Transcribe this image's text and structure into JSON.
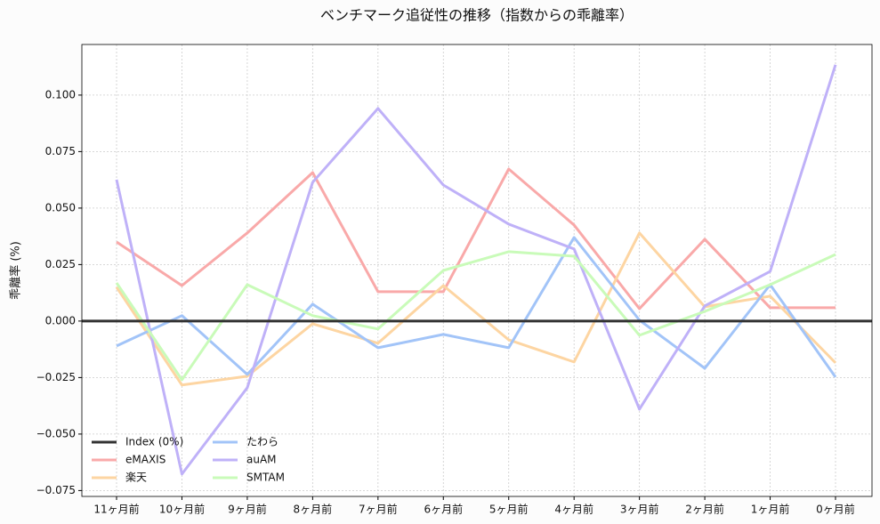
{
  "chart_data": {
    "type": "line",
    "title": "ベンチマーク追従性の推移（指数からの乖離率）",
    "y_label": "乖離率 (%)",
    "categories": [
      "11ヶ月前",
      "10ヶ月前",
      "9ヶ月前",
      "8ヶ月前",
      "7ヶ月前",
      "6ヶ月前",
      "5ヶ月前",
      "4ヶ月前",
      "3ヶ月前",
      "2ヶ月前",
      "1ヶ月前",
      "0ヶ月前"
    ],
    "reference_line": {
      "name": "Index (0%)",
      "value": 0,
      "color": "#333333"
    },
    "series": [
      {
        "name": "eMAXIS",
        "color": "#f9a9a9",
        "values": [
          0.035,
          0.0157,
          0.039,
          0.0657,
          0.013,
          0.013,
          0.0673,
          0.0425,
          0.0055,
          0.0362,
          0.0059,
          0.0059
        ]
      },
      {
        "name": "楽天",
        "color": "#fdd5a2",
        "values": [
          0.015,
          -0.0283,
          -0.0244,
          -0.0012,
          -0.0098,
          0.0157,
          -0.0083,
          -0.0181,
          0.039,
          0.0063,
          0.011,
          -0.0185
        ]
      },
      {
        "name": "たわら",
        "color": "#a2c4f8",
        "values": [
          -0.011,
          0.0024,
          -0.0236,
          0.0075,
          -0.0118,
          -0.0059,
          -0.0118,
          0.037,
          0.0004,
          -0.0209,
          0.0161,
          -0.0248
        ]
      },
      {
        "name": "auAM",
        "color": "#bfb1f8",
        "values": [
          0.0626,
          -0.0677,
          -0.0295,
          0.0614,
          0.0941,
          0.0602,
          0.0429,
          0.0319,
          -0.039,
          0.0067,
          0.022,
          0.1134
        ]
      },
      {
        "name": "SMTAM",
        "color": "#c9fbb9",
        "values": [
          0.0169,
          -0.026,
          0.0161,
          0.0024,
          -0.0035,
          0.0224,
          0.0307,
          0.0287,
          -0.0063,
          0.0043,
          0.0161,
          0.0295
        ]
      }
    ],
    "ylim": [
      -0.0776,
      0.1224
    ],
    "yticks": [
      {
        "value": -0.075,
        "label": "−0.075"
      },
      {
        "value": -0.05,
        "label": "−0.050"
      },
      {
        "value": -0.025,
        "label": "−0.025"
      },
      {
        "value": 0,
        "label": "0.000"
      },
      {
        "value": 0.025,
        "label": "0.025"
      },
      {
        "value": 0.05,
        "label": "0.050"
      },
      {
        "value": 0.075,
        "label": "0.075"
      },
      {
        "value": 0.1,
        "label": "0.100"
      }
    ],
    "grid": true,
    "legend": "lower left"
  }
}
